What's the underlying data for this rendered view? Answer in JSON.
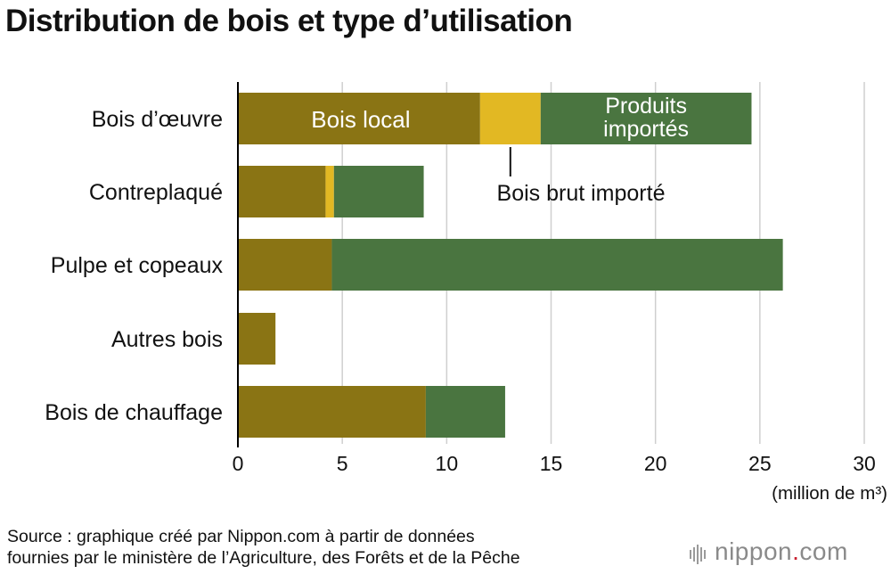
{
  "title": "Distribution de bois et type d’utilisation",
  "source_line1": "Source : graphique créé par Nippon.com à partir de données",
  "source_line2": "fournies par le ministère de l’Agriculture, des Forêts et de la Pêche",
  "logo": {
    "name": "nippon",
    "dot": ".",
    "tld": "com"
  },
  "colors": {
    "local": "#8a7414",
    "raw": "#e2b823",
    "products": "#4a7540",
    "grid": "#cfcfcf",
    "axis": "#000000"
  },
  "chart_data": {
    "type": "bar",
    "orientation": "horizontal",
    "stacked": true,
    "unit_label": "(million de m³)",
    "xlim": [
      0,
      30
    ],
    "xticks": [
      0,
      5,
      10,
      15,
      20,
      25,
      30
    ],
    "grid": true,
    "categories": [
      "Bois d’œuvre",
      "Contreplaqué",
      "Pulpe et copeaux",
      "Autres bois",
      "Bois de chauffage"
    ],
    "series": [
      {
        "name": "Bois local",
        "values": [
          11.6,
          4.2,
          4.5,
          1.8,
          9.0
        ]
      },
      {
        "name": "Bois brut importé",
        "values": [
          2.9,
          0.4,
          0.0,
          0.0,
          0.0
        ]
      },
      {
        "name": "Produits importés",
        "values": [
          10.1,
          4.3,
          21.6,
          0.0,
          3.8
        ]
      }
    ],
    "annotations": {
      "local": "Bois local",
      "raw": "Bois brut importé",
      "products_line1": "Produits",
      "products_line2": "importés"
    }
  }
}
